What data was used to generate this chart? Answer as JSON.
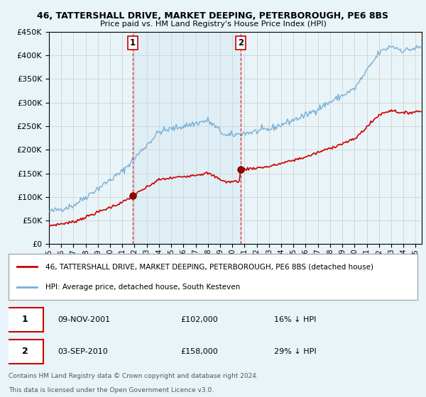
{
  "title1": "46, TATTERSHALL DRIVE, MARKET DEEPING, PETERBOROUGH, PE6 8BS",
  "title2": "Price paid vs. HM Land Registry's House Price Index (HPI)",
  "hpi_label": "HPI: Average price, detached house, South Kesteven",
  "prop_label": "46, TATTERSHALL DRIVE, MARKET DEEPING, PETERBOROUGH, PE6 8BS (detached house)",
  "hpi_color": "#7aaed6",
  "hpi_fill": "#ddeeff",
  "prop_color": "#cc0000",
  "marker_color": "#990000",
  "vline_color": "#cc0000",
  "background_color": "#e8f4f8",
  "plot_bg": "#e8f4f8",
  "ylim": [
    0,
    450000
  ],
  "yticks": [
    0,
    50000,
    100000,
    150000,
    200000,
    250000,
    300000,
    350000,
    400000,
    450000
  ],
  "sale1_x": 2001.85,
  "sale1_price": 102000,
  "sale2_x": 2010.67,
  "sale2_price": 158000,
  "annotation1": {
    "label": "1",
    "date": "09-NOV-2001",
    "price": "£102,000",
    "hpi": "16% ↓ HPI"
  },
  "annotation2": {
    "label": "2",
    "date": "03-SEP-2010",
    "price": "£158,000",
    "hpi": "29% ↓ HPI"
  },
  "footer1": "Contains HM Land Registry data © Crown copyright and database right 2024.",
  "footer2": "This data is licensed under the Open Government Licence v3.0."
}
